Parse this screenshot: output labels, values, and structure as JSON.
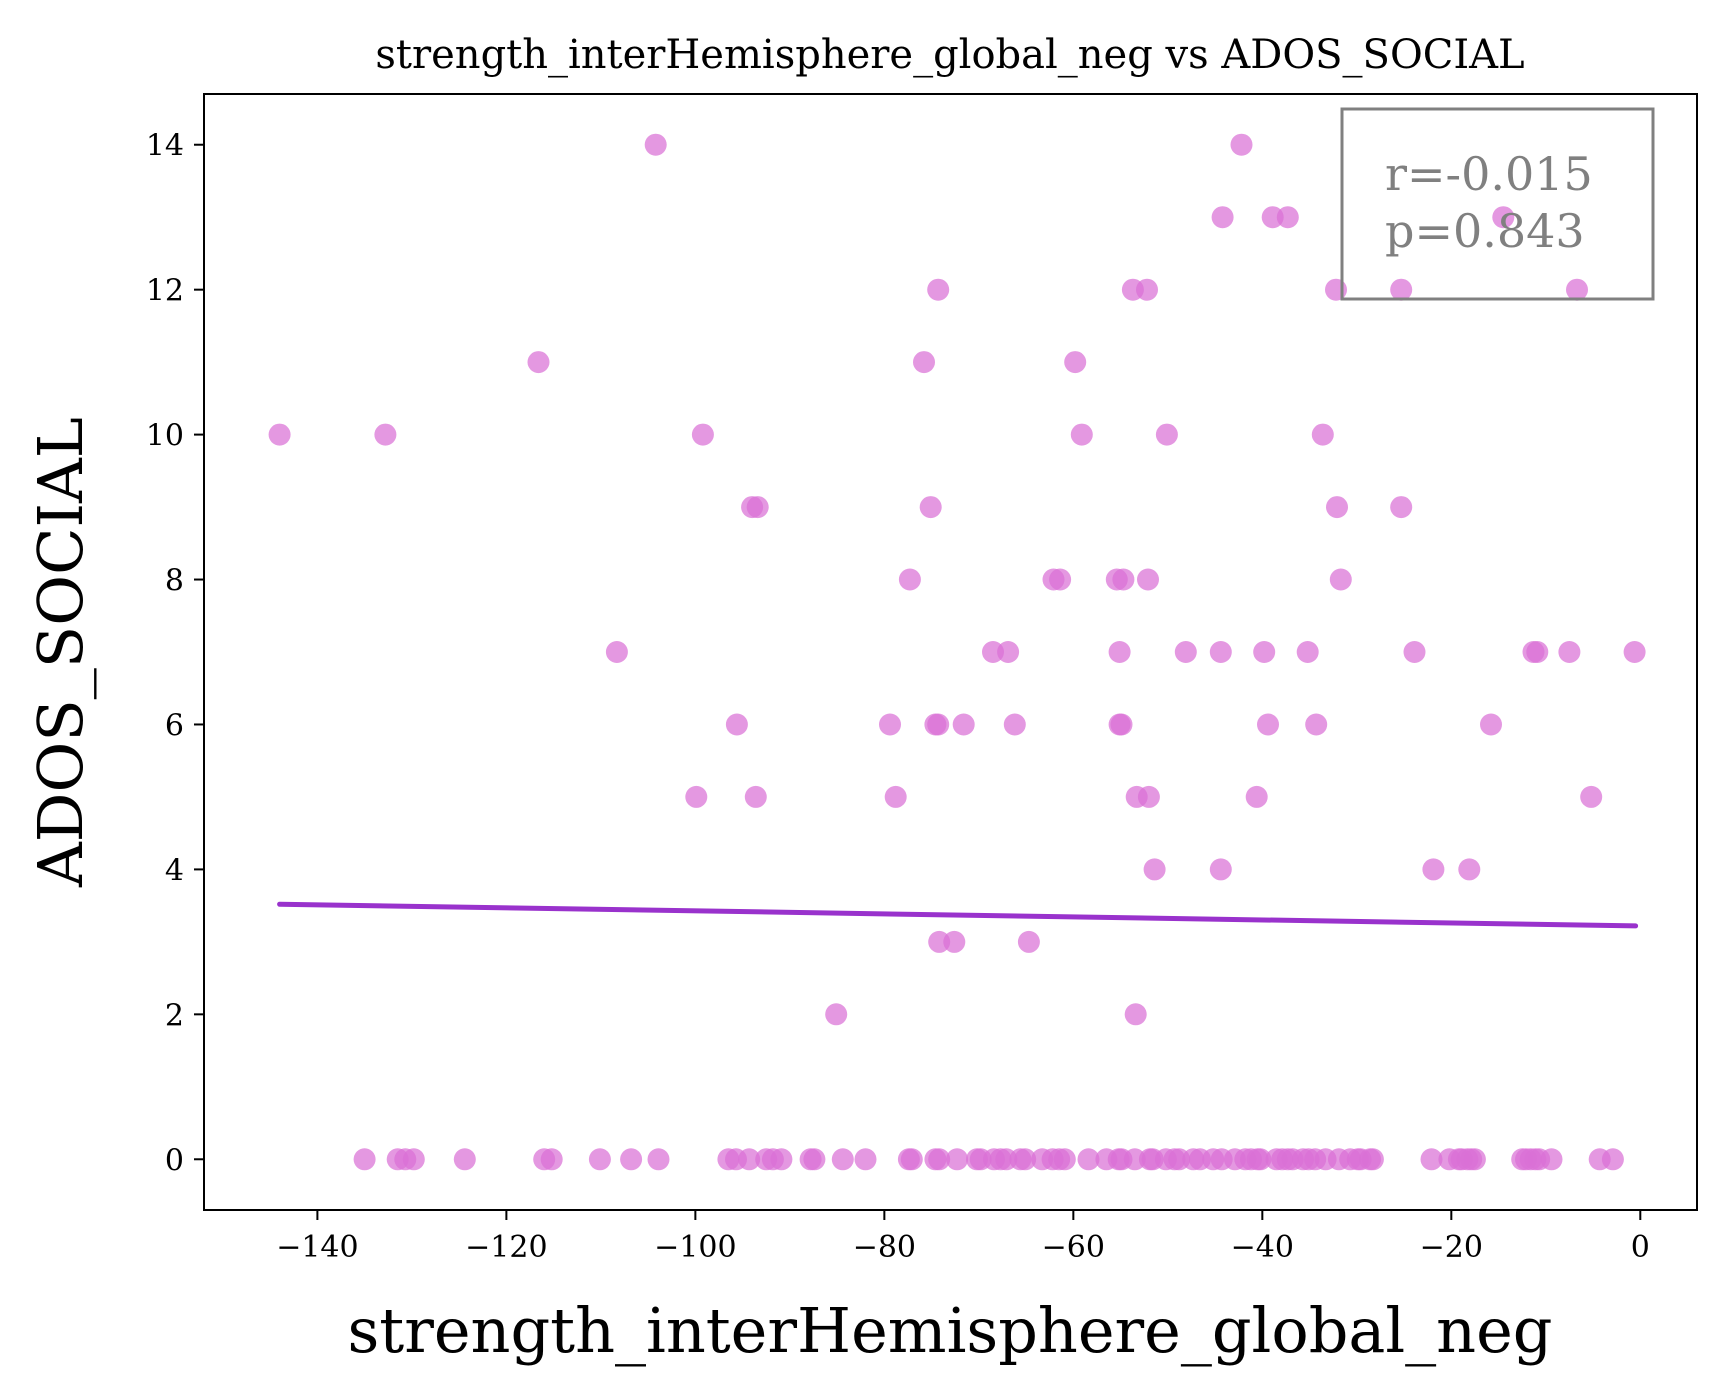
{
  "chart_data": {
    "type": "scatter",
    "title": "strength_interHemisphere_global_neg vs ADOS_SOCIAL",
    "xlabel": "strength_interHemisphere_global_neg",
    "ylabel": "ADOS_SOCIAL",
    "xlim": [
      -152,
      6
    ],
    "ylim": [
      -0.7,
      14.7
    ],
    "xticks": [
      -140,
      -120,
      -100,
      -80,
      -60,
      -40,
      -20,
      0
    ],
    "xtick_labels": [
      "−140",
      "−120",
      "−100",
      "−80",
      "−60",
      "−40",
      "−20",
      "0"
    ],
    "yticks": [
      0,
      2,
      4,
      6,
      8,
      10,
      12,
      14
    ],
    "ytick_labels": [
      "0",
      "2",
      "4",
      "6",
      "8",
      "10",
      "12",
      "14"
    ],
    "grid": false,
    "point_color": "#da70d6",
    "line_color": "#9932cc",
    "stats": {
      "r_text": "r=-0.015",
      "p_text": "p=0.843",
      "placement": "top-right",
      "border_color": "#808080"
    },
    "regression": {
      "x": [
        -144,
        -0.5
      ],
      "y": [
        3.52,
        3.22
      ]
    },
    "points": [
      [
        -104.2,
        14
      ],
      [
        -42.2,
        14
      ],
      [
        -44.2,
        13
      ],
      [
        -38.9,
        13
      ],
      [
        -37.3,
        13
      ],
      [
        -14.5,
        13
      ],
      [
        -74.3,
        12
      ],
      [
        -53.7,
        12
      ],
      [
        -52.2,
        12
      ],
      [
        -32.2,
        12
      ],
      [
        -25.3,
        12
      ],
      [
        -6.7,
        12
      ],
      [
        -116.6,
        11
      ],
      [
        -75.8,
        11
      ],
      [
        -59.8,
        11
      ],
      [
        -144,
        10
      ],
      [
        -132.8,
        10
      ],
      [
        -99.2,
        10
      ],
      [
        -59.1,
        10
      ],
      [
        -50.1,
        10
      ],
      [
        -33.6,
        10
      ],
      [
        -94,
        9
      ],
      [
        -93.4,
        9
      ],
      [
        -75.1,
        9
      ],
      [
        -32.1,
        9
      ],
      [
        -25.3,
        9
      ],
      [
        -77.3,
        8
      ],
      [
        -62.1,
        8
      ],
      [
        -61.4,
        8
      ],
      [
        -55.4,
        8
      ],
      [
        -54.7,
        8
      ],
      [
        -52.1,
        8
      ],
      [
        -31.7,
        8
      ],
      [
        -108.3,
        7
      ],
      [
        -68.5,
        7
      ],
      [
        -66.9,
        7
      ],
      [
        -55.1,
        7
      ],
      [
        -48.1,
        7
      ],
      [
        -44.4,
        7
      ],
      [
        -39.8,
        7
      ],
      [
        -35.2,
        7
      ],
      [
        -23.9,
        7
      ],
      [
        -11.3,
        7
      ],
      [
        -10.9,
        7
      ],
      [
        -7.5,
        7
      ],
      [
        -0.6,
        7
      ],
      [
        -95.6,
        6
      ],
      [
        -79.4,
        6
      ],
      [
        -74.6,
        6
      ],
      [
        -74.3,
        6
      ],
      [
        -71.6,
        6
      ],
      [
        -66.2,
        6
      ],
      [
        -55.1,
        6
      ],
      [
        -54.9,
        6
      ],
      [
        -39.4,
        6
      ],
      [
        -34.3,
        6
      ],
      [
        -15.8,
        6
      ],
      [
        -99.9,
        5
      ],
      [
        -93.6,
        5
      ],
      [
        -78.8,
        5
      ],
      [
        -53.3,
        5
      ],
      [
        -52,
        5
      ],
      [
        -40.6,
        5
      ],
      [
        -5.2,
        5
      ],
      [
        -51.4,
        4
      ],
      [
        -44.4,
        4
      ],
      [
        -21.9,
        4
      ],
      [
        -18.1,
        4
      ],
      [
        -74.2,
        3
      ],
      [
        -72.6,
        3
      ],
      [
        -64.7,
        3
      ],
      [
        -85.1,
        2
      ],
      [
        -53.4,
        2
      ],
      [
        -135,
        0
      ],
      [
        -131.5,
        0
      ],
      [
        -130.7,
        0
      ],
      [
        -129.8,
        0
      ],
      [
        -124.4,
        0
      ],
      [
        -116,
        0
      ],
      [
        -115.2,
        0
      ],
      [
        -110.1,
        0
      ],
      [
        -106.8,
        0
      ],
      [
        -103.9,
        0
      ],
      [
        -96.5,
        0
      ],
      [
        -95.7,
        0
      ],
      [
        -94.3,
        0
      ],
      [
        -92.5,
        0
      ],
      [
        -91.8,
        0
      ],
      [
        -90.9,
        0
      ],
      [
        -87.8,
        0
      ],
      [
        -87.4,
        0
      ],
      [
        -84.4,
        0
      ],
      [
        -82,
        0
      ],
      [
        -77.4,
        0
      ],
      [
        -77.1,
        0
      ],
      [
        -74.6,
        0
      ],
      [
        -74.2,
        0
      ],
      [
        -72.3,
        0
      ],
      [
        -70.2,
        0
      ],
      [
        -69.8,
        0
      ],
      [
        -68.4,
        0
      ],
      [
        -67.7,
        0
      ],
      [
        -67.1,
        0
      ],
      [
        -65.6,
        0
      ],
      [
        -65.1,
        0
      ],
      [
        -63.3,
        0
      ],
      [
        -62.2,
        0
      ],
      [
        -61.5,
        0
      ],
      [
        -60.9,
        0
      ],
      [
        -58.4,
        0
      ],
      [
        -56.5,
        0
      ],
      [
        -55.2,
        0
      ],
      [
        -54.9,
        0
      ],
      [
        -53.5,
        0
      ],
      [
        -51.9,
        0
      ],
      [
        -51.6,
        0
      ],
      [
        -50.2,
        0
      ],
      [
        -49.3,
        0
      ],
      [
        -48.8,
        0
      ],
      [
        -47.3,
        0
      ],
      [
        -46.6,
        0
      ],
      [
        -45.2,
        0
      ],
      [
        -44.3,
        0
      ],
      [
        -42.9,
        0
      ],
      [
        -41.8,
        0
      ],
      [
        -41.2,
        0
      ],
      [
        -40.5,
        0
      ],
      [
        -40.2,
        0
      ],
      [
        -38.5,
        0
      ],
      [
        -37.9,
        0
      ],
      [
        -37.3,
        0
      ],
      [
        -36.8,
        0
      ],
      [
        -35.7,
        0
      ],
      [
        -35.1,
        0
      ],
      [
        -34.4,
        0
      ],
      [
        -33.3,
        0
      ],
      [
        -31.9,
        0
      ],
      [
        -30.7,
        0
      ],
      [
        -29.9,
        0
      ],
      [
        -29.6,
        0
      ],
      [
        -28.6,
        0
      ],
      [
        -28.3,
        0
      ],
      [
        -22.1,
        0
      ],
      [
        -20.2,
        0
      ],
      [
        -19.2,
        0
      ],
      [
        -18.9,
        0
      ],
      [
        -18.3,
        0
      ],
      [
        -17.9,
        0
      ],
      [
        -17.5,
        0
      ],
      [
        -12.5,
        0
      ],
      [
        -12.1,
        0
      ],
      [
        -11.6,
        0
      ],
      [
        -11.1,
        0
      ],
      [
        -10.7,
        0
      ],
      [
        -9.4,
        0
      ],
      [
        -4.3,
        0
      ],
      [
        -2.9,
        0
      ]
    ]
  }
}
